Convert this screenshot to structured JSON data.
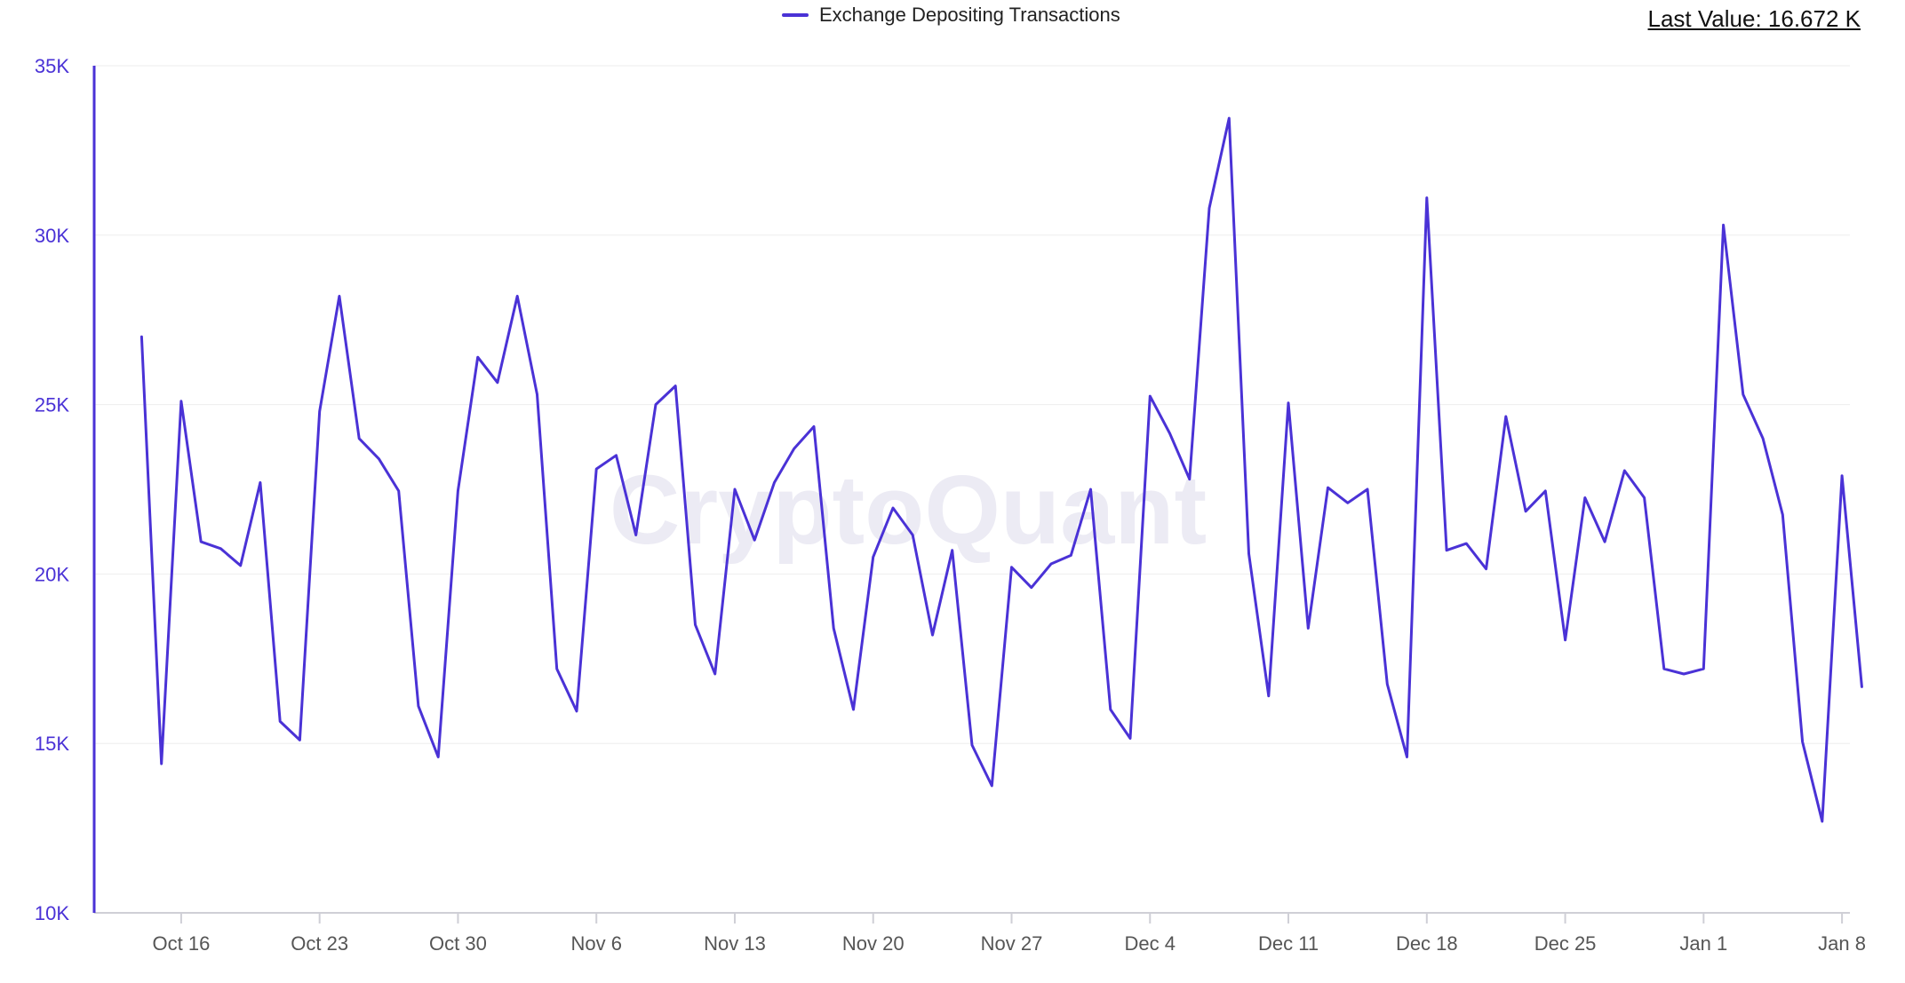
{
  "legend": {
    "label": "Exchange Depositing Transactions",
    "color": "#4a32d6"
  },
  "last_value": {
    "label": "Last Value: 16.672 K"
  },
  "watermark": {
    "text": "CryptoQuant"
  },
  "chart_data": {
    "type": "line",
    "title": "",
    "xlabel": "",
    "ylabel": "",
    "ylim": [
      10000,
      35000
    ],
    "xlim": [
      -2.4,
      86.4
    ],
    "grid": true,
    "legend_position": "top-center",
    "y_ticks": [
      {
        "value": 10000,
        "label": "10K"
      },
      {
        "value": 15000,
        "label": "15K"
      },
      {
        "value": 20000,
        "label": "20K"
      },
      {
        "value": 25000,
        "label": "25K"
      },
      {
        "value": 30000,
        "label": "30K"
      },
      {
        "value": 35000,
        "label": "35K"
      }
    ],
    "x_ticks": [
      {
        "index": 2,
        "label": "Oct 16"
      },
      {
        "index": 9,
        "label": "Oct 23"
      },
      {
        "index": 16,
        "label": "Oct 30"
      },
      {
        "index": 23,
        "label": "Nov 6"
      },
      {
        "index": 30,
        "label": "Nov 13"
      },
      {
        "index": 37,
        "label": "Nov 20"
      },
      {
        "index": 44,
        "label": "Nov 27"
      },
      {
        "index": 51,
        "label": "Dec 4"
      },
      {
        "index": 58,
        "label": "Dec 11"
      },
      {
        "index": 65,
        "label": "Dec 18"
      },
      {
        "index": 72,
        "label": "Dec 25"
      },
      {
        "index": 79,
        "label": "Jan 1"
      },
      {
        "index": 86,
        "label": "Jan 8"
      }
    ],
    "series": [
      {
        "name": "Exchange Depositing Transactions",
        "color": "#4a32d6",
        "x_start_index": 0,
        "values": [
          27000,
          14400,
          25100,
          20950,
          20750,
          20250,
          22700,
          15650,
          15100,
          24800,
          28200,
          24000,
          23400,
          22450,
          16100,
          14600,
          22450,
          26400,
          25650,
          28200,
          25300,
          17200,
          15950,
          23100,
          23500,
          21150,
          25000,
          25550,
          18500,
          17050,
          22500,
          21000,
          22700,
          23700,
          24350,
          18400,
          16000,
          20500,
          21950,
          21150,
          18200,
          20700,
          14950,
          13750,
          20200,
          19600,
          20300,
          20550,
          22500,
          16000,
          15150,
          25250,
          24150,
          22800,
          30800,
          33450,
          20600,
          16400,
          25050,
          18400,
          22550,
          22100,
          22500,
          16750,
          14600,
          31100,
          20700,
          20900,
          20150,
          24650,
          21850,
          22450,
          18050,
          22250,
          20950,
          23050,
          22250,
          17200,
          17050,
          17200,
          30300,
          25300,
          24000,
          21750,
          15050,
          12700,
          22900,
          16672
        ]
      }
    ]
  }
}
